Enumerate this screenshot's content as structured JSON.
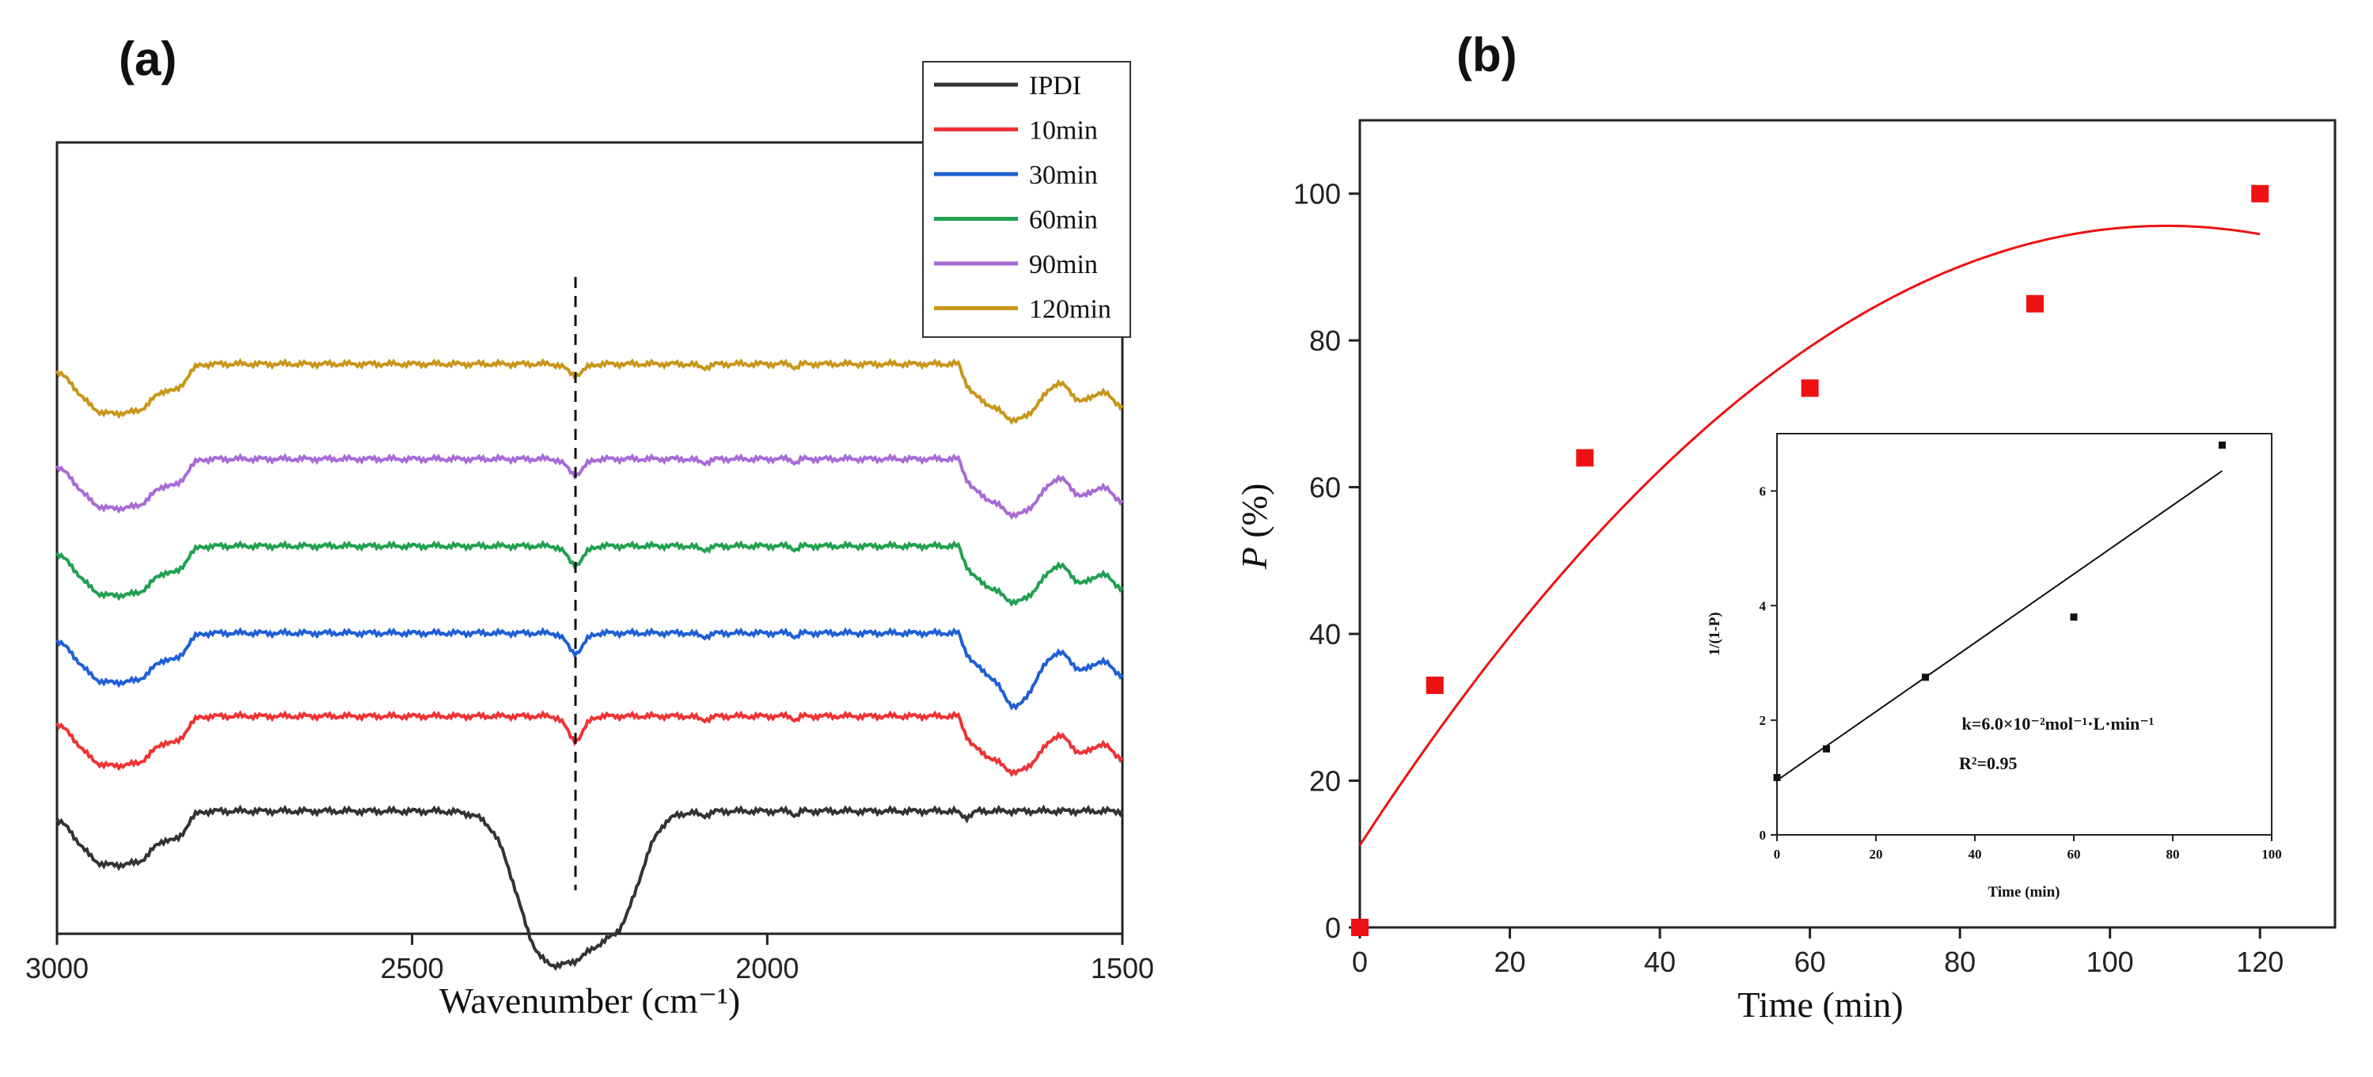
{
  "chart_data": [
    {
      "panel": "(a)",
      "type": "line",
      "xlabel": "Wavenumber (cm⁻¹)",
      "ylabel": "",
      "xlim": [
        3000,
        1500
      ],
      "xticks": [
        "3000",
        "2500",
        "2000",
        "1500"
      ],
      "xtick_values": [
        3000,
        2500,
        2000,
        1500
      ],
      "reference_line_x": 2270,
      "legend": [
        "IPDI",
        "10min",
        "30min",
        "60min",
        "90min",
        "120min"
      ],
      "series": [
        {
          "name": "IPDI",
          "color": "#333333",
          "offset": 0,
          "dips": "deep 2270 band"
        },
        {
          "name": "10min",
          "color": "#ee3333",
          "offset": 1,
          "dips": "2270 band"
        },
        {
          "name": "30min",
          "color": "#1f5fd6",
          "offset": 2,
          "dips": "2270 band"
        },
        {
          "name": "60min",
          "color": "#22a050",
          "offset": 3,
          "dips": "2270 band"
        },
        {
          "name": "90min",
          "color": "#a96ad6",
          "offset": 4,
          "dips": "2270 band"
        },
        {
          "name": "120min",
          "color": "#c8961a",
          "offset": 5,
          "dips": "2270 band"
        }
      ]
    },
    {
      "panel": "(b)",
      "type": "scatter",
      "xlabel": "Time (min)",
      "ylabel": "P (%)",
      "ylabel_italic": "P",
      "ylabel_rest": " (%)",
      "xlim": [
        0,
        130
      ],
      "ylim": [
        0,
        110
      ],
      "xticks": [
        "0",
        "20",
        "40",
        "60",
        "80",
        "100",
        "120"
      ],
      "xtick_values": [
        0,
        20,
        40,
        60,
        80,
        100,
        120
      ],
      "yticks": [
        "0",
        "20",
        "40",
        "60",
        "80",
        "100"
      ],
      "ytick_values": [
        0,
        20,
        40,
        60,
        80,
        100
      ],
      "series": [
        {
          "name": "P (%)",
          "x": [
            0,
            10,
            30,
            60,
            90,
            120
          ],
          "y": [
            0,
            33,
            64,
            73.5,
            85,
            100
          ],
          "color": "#ee1111",
          "marker": "square"
        }
      ],
      "fit": {
        "type": "polynomial",
        "coeffs": [
          11.2,
          1.57,
          -0.0073
        ],
        "x_range": [
          0,
          120
        ],
        "color": "#ee1111"
      },
      "inset": {
        "type": "scatter",
        "xlabel": "Time (min)",
        "ylabel": "1/(1-P)",
        "xlim": [
          0,
          100
        ],
        "ylim": [
          0,
          7
        ],
        "xticks": [
          "0",
          "20",
          "40",
          "60",
          "80",
          "100"
        ],
        "xtick_values": [
          0,
          20,
          40,
          60,
          80,
          100
        ],
        "yticks": [
          "0",
          "2",
          "4",
          "6"
        ],
        "ytick_values": [
          0,
          2,
          4,
          6
        ],
        "x": [
          0,
          10,
          30,
          60,
          90
        ],
        "y": [
          1.0,
          1.5,
          2.75,
          3.8,
          6.8
        ],
        "fit": {
          "slope": 0.06,
          "intercept": 0.95,
          "x_range": [
            0,
            90
          ]
        },
        "annotation_k": "k=6.0×10⁻²mol⁻¹·L·min⁻¹",
        "annotation_r2": "R²=0.95"
      }
    }
  ]
}
